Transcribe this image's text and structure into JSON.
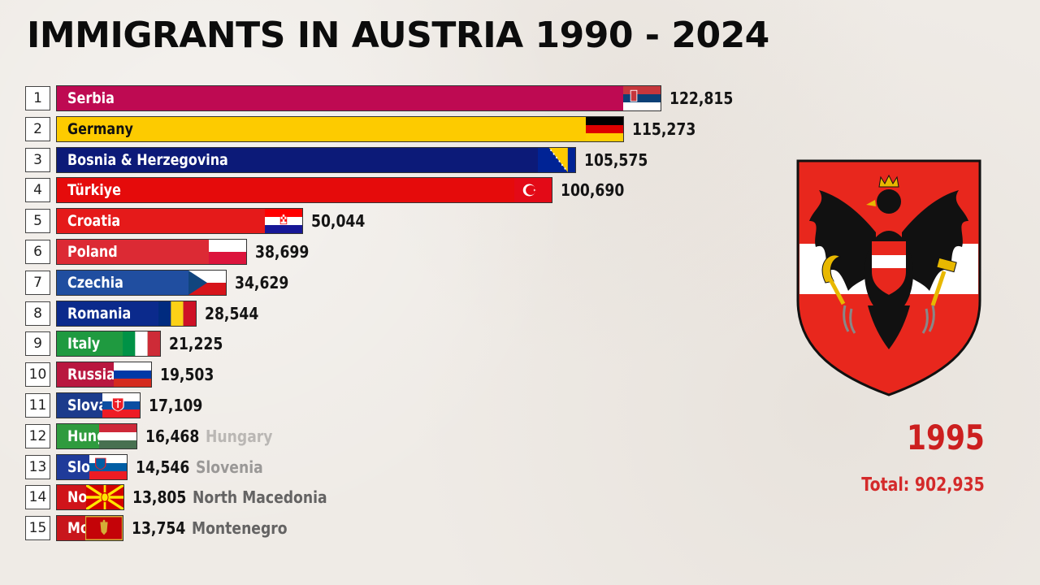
{
  "header": {
    "title": "IMMIGRANTS IN AUSTRIA 1990 - 2024"
  },
  "side": {
    "year": "1995",
    "total": "Total: 902,935",
    "crest_icon": "austrian-coat-of-arms"
  },
  "chart_data": {
    "type": "bar",
    "orientation": "horizontal",
    "title": "IMMIGRANTS IN AUSTRIA 1990 - 2024",
    "year": "1995",
    "total": 902935,
    "categories": [
      "Serbia",
      "Germany",
      "Bosnia & Herzegovina",
      "Türkiye",
      "Croatia",
      "Poland",
      "Czechia",
      "Romania",
      "Italy",
      "Russia",
      "Slovakia",
      "Hungary",
      "Slovenia",
      "North Macedonia",
      "Montenegro"
    ],
    "values": [
      122815,
      115273,
      105575,
      100690,
      50044,
      38699,
      34629,
      28544,
      21225,
      19503,
      17109,
      16468,
      14546,
      13805,
      13754
    ],
    "value_labels": [
      "122,815",
      "115,273",
      "105,575",
      "100,690",
      "50,044",
      "38,699",
      "34,629",
      "28,544",
      "21,225",
      "19,503",
      "17,109",
      "16,468",
      "14,546",
      "13,805",
      "13,754"
    ],
    "ranks": [
      "1",
      "2",
      "3",
      "4",
      "5",
      "6",
      "7",
      "8",
      "9",
      "10",
      "11",
      "12",
      "13",
      "14",
      "15"
    ],
    "bar_labels": [
      "Serbia",
      "Germany",
      "Bosnia & Herzegovina",
      "Türkiye",
      "Croatia",
      "Poland",
      "Czechia",
      "Romania",
      "Italy",
      "Russia",
      "Slova",
      "Hung",
      "Slo",
      "No",
      "Mo"
    ],
    "outside_labels": [
      "",
      "",
      "",
      "",
      "",
      "",
      "",
      "",
      "",
      "",
      "",
      "Hungary",
      "Slovenia",
      "North Macedonia",
      "Montenegro"
    ],
    "outside_label_opacity": [
      1,
      1,
      1,
      1,
      1,
      1,
      1,
      1,
      1,
      1,
      1,
      0.35,
      0.55,
      0.9,
      0.9
    ],
    "colors": [
      "#be0a52",
      "#fdcb00",
      "#0c1a78",
      "#e50b0b",
      "#e51a1a",
      "#dc2a34",
      "#204ea0",
      "#0b2a8c",
      "#1f9a40",
      "#b9173f",
      "#1c3b8c",
      "#2f9b3e",
      "#1f3b9a",
      "#d0141a",
      "#c8161c"
    ],
    "label_colors": [
      "#ffffff",
      "#111111",
      "#ffffff",
      "#ffffff",
      "#ffffff",
      "#ffffff",
      "#ffffff",
      "#ffffff",
      "#ffffff",
      "#ffffff",
      "#ffffff",
      "#ffffff",
      "#ffffff",
      "#ffffff",
      "#ffffff"
    ],
    "flag_icons": [
      "serbia-flag",
      "germany-flag",
      "bosnia-flag",
      "turkey-flag",
      "croatia-flag",
      "poland-flag",
      "czechia-flag",
      "romania-flag",
      "italy-flag",
      "russia-flag",
      "slovakia-flag",
      "hungary-flag",
      "slovenia-flag",
      "north-macedonia-flag",
      "montenegro-flag"
    ]
  }
}
